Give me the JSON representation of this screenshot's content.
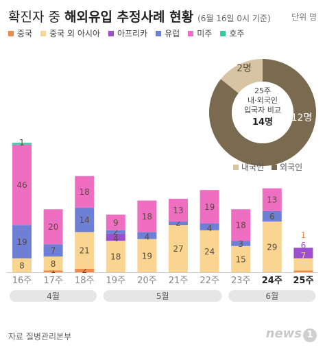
{
  "title_main": "확진자 중",
  "title_strong": "해외유입 추정사례 현황",
  "title_sub": "(6월 16일 0시 기준)",
  "unit": "단위 명",
  "source": "자료 질병관리본부",
  "logo": "news",
  "logo_one": "1",
  "colors": {
    "china": "#f08a4b",
    "asia": "#fad592",
    "africa": "#9b4fd0",
    "europe": "#6e7fd6",
    "america": "#ee6fc2",
    "oceania": "#39c8a4",
    "domestic": "#d6c4a2",
    "foreign": "#7a6a4f",
    "month_band": "#e6e6e6"
  },
  "chart_data": [
    {
      "type": "bar",
      "stacked": true,
      "categories": [
        "16주",
        "17주",
        "18주",
        "19주",
        "20주",
        "21주",
        "22주",
        "23주",
        "24주",
        "25주"
      ],
      "bold_categories": [
        "24주",
        "25주"
      ],
      "series": [
        {
          "name": "중국",
          "key": "china",
          "values": [
            0,
            1,
            2,
            0,
            0,
            0,
            0,
            0,
            0,
            1
          ]
        },
        {
          "name": "중국 외 아시아",
          "key": "asia",
          "values": [
            8,
            8,
            21,
            18,
            19,
            27,
            24,
            15,
            29,
            7
          ]
        },
        {
          "name": "아프리카",
          "key": "africa",
          "values": [
            0,
            0,
            0,
            4,
            0,
            0,
            0,
            0,
            0,
            6
          ]
        },
        {
          "name": "유럽",
          "key": "europe",
          "values": [
            19,
            7,
            14,
            2,
            4,
            2,
            4,
            3,
            6,
            0
          ]
        },
        {
          "name": "미주",
          "key": "america",
          "values": [
            46,
            20,
            18,
            9,
            18,
            13,
            19,
            18,
            13,
            0
          ]
        },
        {
          "name": "호주",
          "key": "oceania",
          "values": [
            1,
            0,
            0,
            0,
            0,
            0,
            0,
            0,
            0,
            0
          ]
        }
      ],
      "side_labels": [
        {
          "category": "25주",
          "series": "china",
          "value": 1
        },
        {
          "category": "25주",
          "series": "africa",
          "value": 6
        },
        {
          "category": "25주",
          "series": "asia",
          "value": 7
        }
      ],
      "months": [
        {
          "label": "4월",
          "from": "16주",
          "to": "18주"
        },
        {
          "label": "5월",
          "from": "19주",
          "to": "22주"
        },
        {
          "label": "6월",
          "from": "23주",
          "to": "25주"
        }
      ]
    },
    {
      "type": "pie",
      "center_title": "25주",
      "center_line1": "내·외국인",
      "center_line2": "입국자 비교",
      "center_total": "14명",
      "slices": [
        {
          "name": "내국인",
          "key": "domestic",
          "value": 2,
          "label": "2명"
        },
        {
          "name": "외국인",
          "key": "foreign",
          "value": 12,
          "label": "12명"
        }
      ]
    }
  ]
}
